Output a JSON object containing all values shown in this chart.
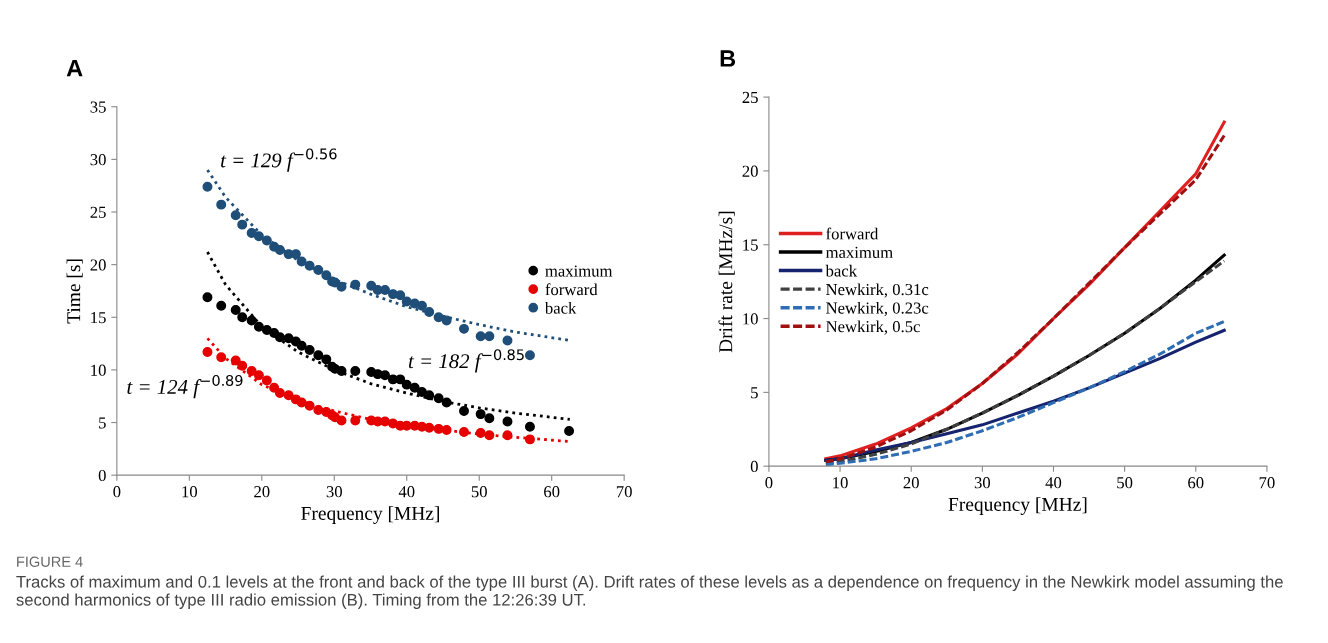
{
  "chart_data": [
    {
      "type": "scatter",
      "title": "A",
      "xlabel": "Frequency [MHz]",
      "ylabel": "Time [s]",
      "xlim": [
        0,
        70
      ],
      "ylim": [
        0,
        35
      ],
      "xticks": [
        0,
        10,
        20,
        30,
        40,
        50,
        60,
        70
      ],
      "yticks": [
        0,
        5,
        10,
        15,
        20,
        25,
        30,
        35
      ],
      "grid": false,
      "legend": "center right",
      "marker": "circle",
      "series": [
        {
          "name": "maximum",
          "color": "#000000",
          "x": [
            12.5,
            14.4,
            16.4,
            17.3,
            18.6,
            19.6,
            20.7,
            21.7,
            22.5,
            23.7,
            24.7,
            25.5,
            26.6,
            27.8,
            28.9,
            29.7,
            30.1,
            31.0,
            32.9,
            35.1,
            36.0,
            37.0,
            38.1,
            39.1,
            40.0,
            41.1,
            42.1,
            43.1,
            44.4,
            45.5,
            47.9,
            50.2,
            51.4,
            53.9,
            57.0,
            62.4
          ],
          "values": [
            16.9,
            16.1,
            15.7,
            15.0,
            14.7,
            14.1,
            13.8,
            13.5,
            13.1,
            13.0,
            12.7,
            12.3,
            11.9,
            11.4,
            11.0,
            10.3,
            10.1,
            9.9,
            9.9,
            9.8,
            9.6,
            9.5,
            9.1,
            9.1,
            8.6,
            8.3,
            7.9,
            7.6,
            7.3,
            6.9,
            6.1,
            5.8,
            5.4,
            5.1,
            4.6,
            4.2
          ]
        },
        {
          "name": "forward",
          "color": "#e60000",
          "x": [
            12.5,
            14.4,
            16.4,
            17.3,
            18.6,
            19.6,
            20.7,
            21.7,
            22.5,
            23.7,
            24.7,
            25.5,
            26.6,
            27.8,
            28.9,
            29.7,
            30.1,
            31.0,
            32.9,
            35.1,
            36.0,
            37.0,
            38.1,
            39.1,
            40.0,
            41.1,
            42.1,
            43.1,
            44.4,
            45.5,
            47.9,
            50.2,
            51.4,
            53.9,
            57.0
          ],
          "values": [
            11.7,
            11.2,
            10.9,
            10.4,
            9.9,
            9.5,
            9.0,
            8.3,
            7.8,
            7.6,
            7.2,
            6.9,
            6.6,
            6.2,
            6.0,
            5.7,
            5.5,
            5.2,
            5.2,
            5.2,
            5.1,
            5.1,
            4.9,
            4.7,
            4.7,
            4.7,
            4.6,
            4.5,
            4.4,
            4.3,
            4.1,
            4.0,
            3.8,
            3.8,
            3.4
          ]
        },
        {
          "name": "back",
          "color": "#1f4e79",
          "x": [
            12.5,
            14.4,
            16.4,
            17.3,
            18.6,
            19.6,
            20.7,
            21.7,
            22.5,
            23.7,
            24.7,
            25.5,
            26.6,
            27.8,
            28.9,
            29.7,
            30.1,
            31.0,
            32.9,
            35.1,
            36.0,
            37.0,
            38.1,
            39.1,
            40.0,
            41.1,
            42.1,
            43.1,
            44.4,
            45.5,
            47.9,
            50.2,
            51.4,
            53.9,
            57.0
          ],
          "values": [
            27.4,
            25.7,
            24.7,
            23.8,
            23.0,
            22.7,
            22.3,
            21.7,
            21.4,
            21.0,
            21.0,
            20.3,
            19.9,
            19.5,
            19.0,
            18.4,
            18.3,
            17.9,
            18.1,
            18.0,
            17.6,
            17.6,
            17.2,
            17.1,
            16.5,
            16.3,
            16.1,
            15.5,
            15.0,
            14.7,
            13.9,
            13.2,
            13.2,
            12.8,
            11.4
          ]
        },
        {
          "type": "line",
          "line_style": "dotted",
          "marker": "none",
          "color": "#000000",
          "x": [
            12.5,
            15,
            20,
            25,
            30,
            35,
            40,
            45,
            50,
            55,
            62.5
          ],
          "values": [
            21.2,
            18.1,
            14.1,
            11.7,
            10.0,
            8.7,
            7.8,
            7.0,
            6.4,
            5.9,
            5.3
          ]
        },
        {
          "type": "line",
          "line_style": "dotted",
          "marker": "none",
          "color": "#e60000",
          "x": [
            12.5,
            15,
            20,
            25,
            30,
            35,
            40,
            45,
            50,
            55,
            62.5
          ],
          "values": [
            13.0,
            11.1,
            8.6,
            7.1,
            6.1,
            5.3,
            4.7,
            4.3,
            3.9,
            3.6,
            3.2
          ]
        },
        {
          "type": "line",
          "line_style": "dotted",
          "marker": "none",
          "color": "#1f4e79",
          "x": [
            12.5,
            15,
            20,
            25,
            30,
            35,
            40,
            45,
            50,
            55,
            62.5
          ],
          "values": [
            29.0,
            26.4,
            22.8,
            20.4,
            18.6,
            17.2,
            16.0,
            15.1,
            14.3,
            13.6,
            12.8
          ]
        }
      ],
      "annotations": [
        "t = 129 f$^{−0.56}$",
        "t = 182 f$^{−0.85}$",
        "t = 124 f$^{−0.89}$",
        "FIGURE 4",
        "Tracks of maximum and 0.1 levels at the front and back of the type III burst (A). Drift rates of these levels as a dependence on frequency in the Newkirk model assuming the second harmonics of type III radio emission (B). Timing from the 12:26:39 UT."
      ]
    },
    {
      "type": "line",
      "title": "B",
      "xlabel": "Frequency [MHz]",
      "ylabel": "Drift rate [MHz/s]",
      "xlim": [
        0,
        70
      ],
      "ylim": [
        0,
        25
      ],
      "xticks": [
        0,
        10,
        20,
        30,
        40,
        50,
        60,
        70
      ],
      "yticks": [
        0,
        5,
        10,
        15,
        20,
        25
      ],
      "grid": false,
      "legend": "center left",
      "marker": "none",
      "x": [
        8,
        10,
        15,
        20,
        25,
        30,
        35,
        40,
        45,
        50,
        55,
        60,
        64
      ],
      "series": [
        {
          "name": "forward",
          "color": "#e02020",
          "line_style": "solid",
          "values": [
            0.5,
            0.7,
            1.5,
            2.6,
            3.9,
            5.6,
            7.6,
            10.0,
            12.3,
            14.8,
            17.3,
            19.8,
            23.3
          ]
        },
        {
          "name": "maximum",
          "color": "#000000",
          "line_style": "solid",
          "values": [
            0.4,
            0.5,
            1.0,
            1.6,
            2.5,
            3.6,
            4.8,
            6.1,
            7.5,
            9.0,
            10.7,
            12.6,
            14.3
          ]
        },
        {
          "name": "back",
          "color": "#16236e",
          "line_style": "solid",
          "values": [
            0.4,
            0.5,
            1.1,
            1.6,
            2.2,
            2.8,
            3.6,
            4.4,
            5.3,
            6.3,
            7.3,
            8.4,
            9.2
          ]
        },
        {
          "name": "Newkirk, 0.31c",
          "color": "#404040",
          "line_style": "dashed",
          "values": [
            0.2,
            0.3,
            0.8,
            1.5,
            2.5,
            3.6,
            4.8,
            6.1,
            7.5,
            9.0,
            10.7,
            12.5,
            13.9
          ]
        },
        {
          "name": "Newkirk, 0.23c",
          "color": "#2e6db4",
          "line_style": "dashed",
          "values": [
            0.1,
            0.2,
            0.5,
            1.0,
            1.6,
            2.4,
            3.3,
            4.3,
            5.3,
            6.4,
            7.6,
            9.0,
            9.8
          ]
        },
        {
          "name": "Newkirk, 0.5c",
          "color": "#a01010",
          "line_style": "dashed",
          "values": [
            0.3,
            0.5,
            1.3,
            2.4,
            3.8,
            5.6,
            7.7,
            10.0,
            12.4,
            14.8,
            17.1,
            19.4,
            22.4
          ]
        }
      ]
    }
  ]
}
